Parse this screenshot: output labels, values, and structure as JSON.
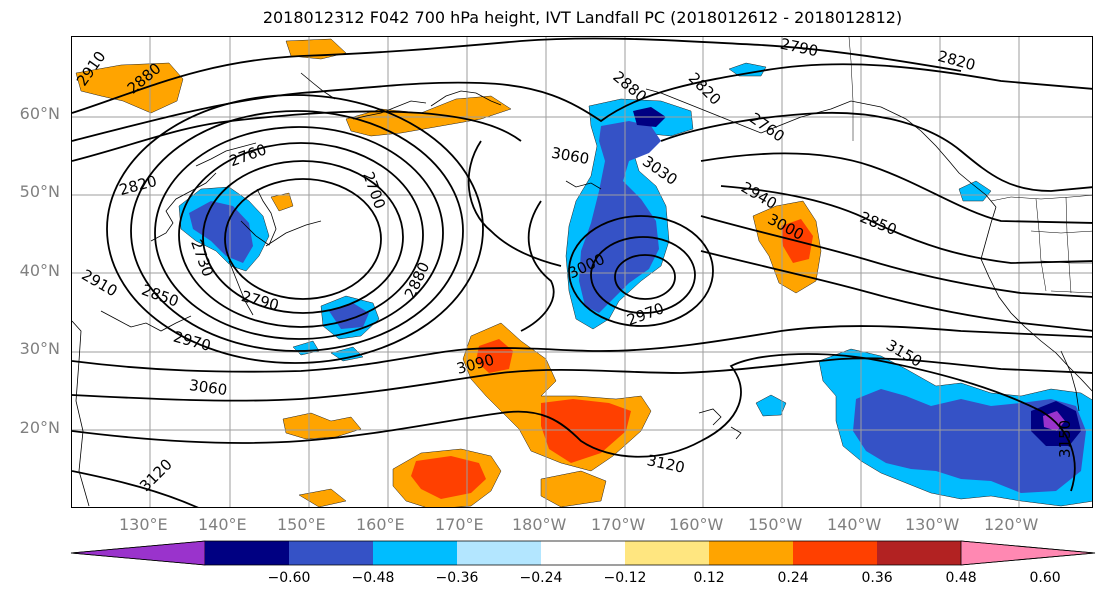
{
  "title": "2018012312 F042 700 hPa height, IVT Landfall PC (2018012612 - 2018012812)",
  "latitude_labels": [
    "60°N",
    "50°N",
    "40°N",
    "30°N",
    "20°N"
  ],
  "longitude_labels": [
    "130°E",
    "140°E",
    "150°E",
    "160°E",
    "170°E",
    "180°W",
    "170°W",
    "160°W",
    "150°W",
    "140°W",
    "130°W",
    "120°W"
  ],
  "colorbar": {
    "colors": [
      "#9a33cc",
      "#000082",
      "#3552c6",
      "#00bdff",
      "#b3e6ff",
      "#ffffff",
      "#ffe680",
      "#ffa400",
      "#ff4000",
      "#b22222",
      "#ff88b2"
    ],
    "tick_labels": [
      "−0.60",
      "−0.48",
      "−0.36",
      "−0.24",
      "−0.12",
      "0.12",
      "0.24",
      "0.36",
      "0.48",
      "0.60"
    ]
  },
  "contour_labels": [
    "2910",
    "2880",
    "2760",
    "2820",
    "2730",
    "2910",
    "2850",
    "2790",
    "2970",
    "3060",
    "2700",
    "2880",
    "3060",
    "3030",
    "3000",
    "2970",
    "3090",
    "3120",
    "3120",
    "2880",
    "2820",
    "2790",
    "2820",
    "2760",
    "2940",
    "3000",
    "2850",
    "3150",
    "3150"
  ]
}
